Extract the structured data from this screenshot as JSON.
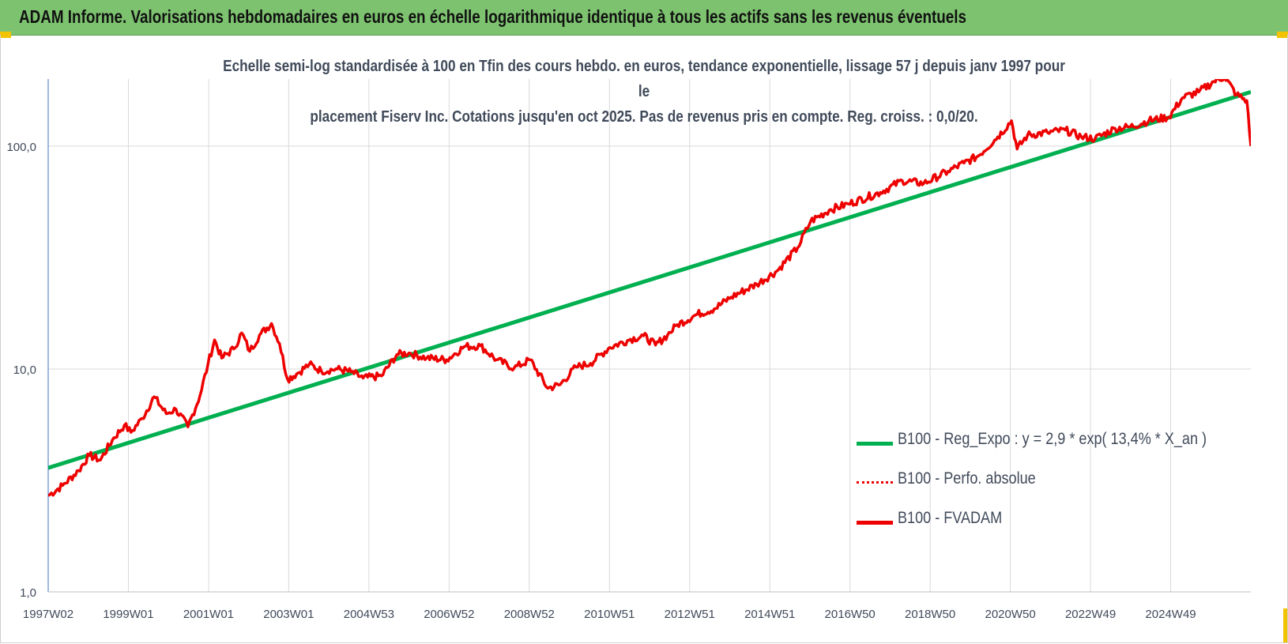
{
  "banner": {
    "title": "ADAM Informe. Valorisations hebdomadaires en euros en échelle logarithmique identique à tous les actifs sans les revenus éventuels"
  },
  "colors": {
    "banner": "#7dc36f",
    "accent_corner": "#f2c300",
    "trend": "#00b050",
    "price": "#ee0000",
    "text": "#404a5a",
    "grid": "#d9d9d9"
  },
  "chart_data": {
    "type": "line",
    "y_scale": "log",
    "ylim": [
      1,
      200
    ],
    "y_ticks": [
      1,
      10,
      100
    ],
    "y_tick_labels": [
      "1,0",
      "10,0",
      "100,0"
    ],
    "grid": true,
    "legend_position": "bottom-right",
    "title_lines": [
      "Echelle semi-log standardisée à 100 en Tfin des cours hebdo. en euros, tendance exponentielle, lissage 57 j depuis janv 1997 pour le",
      "placement Fiserv Inc. Cotations jusqu'en oct 2025. Pas de revenus pris en compte. Reg. croiss. : 0,0/20."
    ],
    "x_range": [
      "1997W02",
      "2025W43"
    ],
    "x_tick_labels": [
      "1997W02",
      "1999W01",
      "2001W01",
      "2003W01",
      "2004W53",
      "2006W52",
      "2008W52",
      "2010W51",
      "2012W51",
      "2014W51",
      "2016W50",
      "2018W50",
      "2020W50",
      "2022W49",
      "2024W49"
    ],
    "series": [
      {
        "name": "B100 - Reg_Expo : y = 2,9 * exp( 13,4% *  X_an )",
        "style": "solid",
        "color": "#00b050",
        "points": [
          [
            "1997W02",
            3.6
          ],
          [
            "2025W43",
            175
          ]
        ]
      },
      {
        "name": "B100 - Perfo. absolue",
        "style": "dotted",
        "color": "#ee0000",
        "points": []
      },
      {
        "name": "B100 - FVADAM",
        "style": "solid",
        "color": "#ee0000",
        "points": [
          [
            "1997W02",
            2.7
          ],
          [
            "1997W20",
            3.0
          ],
          [
            "1997W40",
            3.5
          ],
          [
            "1998W01",
            4.1
          ],
          [
            "1998W15",
            3.9
          ],
          [
            "1998W30",
            4.8
          ],
          [
            "1998W45",
            5.6
          ],
          [
            "1999W01",
            5.2
          ],
          [
            "1999W15",
            6.0
          ],
          [
            "1999W30",
            7.5
          ],
          [
            "1999W45",
            6.3
          ],
          [
            "2000W05",
            6.6
          ],
          [
            "2000W20",
            5.5
          ],
          [
            "2000W35",
            7.6
          ],
          [
            "2000W45",
            10.5
          ],
          [
            "2001W01",
            13.5
          ],
          [
            "2001W10",
            11.2
          ],
          [
            "2001W25",
            12.3
          ],
          [
            "2001W35",
            14.5
          ],
          [
            "2001W45",
            12.0
          ],
          [
            "2002W05",
            14.2
          ],
          [
            "2002W20",
            16.0
          ],
          [
            "2002W30",
            13.0
          ],
          [
            "2002W40",
            9.0
          ],
          [
            "2003W01",
            9.6
          ],
          [
            "2003W15",
            10.5
          ],
          [
            "2003W30",
            9.8
          ],
          [
            "2003W50",
            10.0
          ],
          [
            "2004W15",
            9.7
          ],
          [
            "2004W30",
            9.1
          ],
          [
            "2004W53",
            9.3
          ],
          [
            "2005W20",
            11.6
          ],
          [
            "2005W35",
            11.8
          ],
          [
            "2006W05",
            11.2
          ],
          [
            "2006W30",
            11.0
          ],
          [
            "2006W52",
            12.6
          ],
          [
            "2007W20",
            12.7
          ],
          [
            "2007W40",
            11.0
          ],
          [
            "2008W10",
            10.1
          ],
          [
            "2008W30",
            11.0
          ],
          [
            "2008W52",
            8.2
          ],
          [
            "2009W15",
            8.5
          ],
          [
            "2009W35",
            10.2
          ],
          [
            "2010W01",
            10.6
          ],
          [
            "2010W25",
            12.5
          ],
          [
            "2010W51",
            13.6
          ],
          [
            "2011W15",
            14.1
          ],
          [
            "2011W30",
            12.8
          ],
          [
            "2011W45",
            14.2
          ],
          [
            "2012W05",
            15.8
          ],
          [
            "2012W30",
            17.6
          ],
          [
            "2012W51",
            18.6
          ],
          [
            "2013W20",
            21.0
          ],
          [
            "2013W52",
            24.0
          ],
          [
            "2014W25",
            27.5
          ],
          [
            "2014W51",
            35.0
          ],
          [
            "2015W15",
            46.0
          ],
          [
            "2015W40",
            52.0
          ],
          [
            "2016W10",
            55.0
          ],
          [
            "2016W50",
            62.0
          ],
          [
            "2017W25",
            70.0
          ],
          [
            "2017W52",
            68.0
          ],
          [
            "2018W30",
            77.0
          ],
          [
            "2018W50",
            84.0
          ],
          [
            "2019W15",
            90.0
          ],
          [
            "2019W40",
            110.0
          ],
          [
            "2020W05",
            130.0
          ],
          [
            "2020W12",
            97.0
          ],
          [
            "2020W25",
            112.0
          ],
          [
            "2020W50",
            115.0
          ],
          [
            "2021W20",
            118.0
          ],
          [
            "2021W40",
            110.0
          ],
          [
            "2022W05",
            108.0
          ],
          [
            "2022W30",
            120.0
          ],
          [
            "2022W49",
            122.0
          ],
          [
            "2023W20",
            130.0
          ],
          [
            "2023W45",
            135.0
          ],
          [
            "2024W10",
            165.0
          ],
          [
            "2024W30",
            175.0
          ],
          [
            "2024W49",
            195.0
          ],
          [
            "2025W10",
            205.0
          ],
          [
            "2025W25",
            170.0
          ],
          [
            "2025W38",
            160.0
          ],
          [
            "2025W43",
            100.0
          ]
        ]
      }
    ]
  }
}
